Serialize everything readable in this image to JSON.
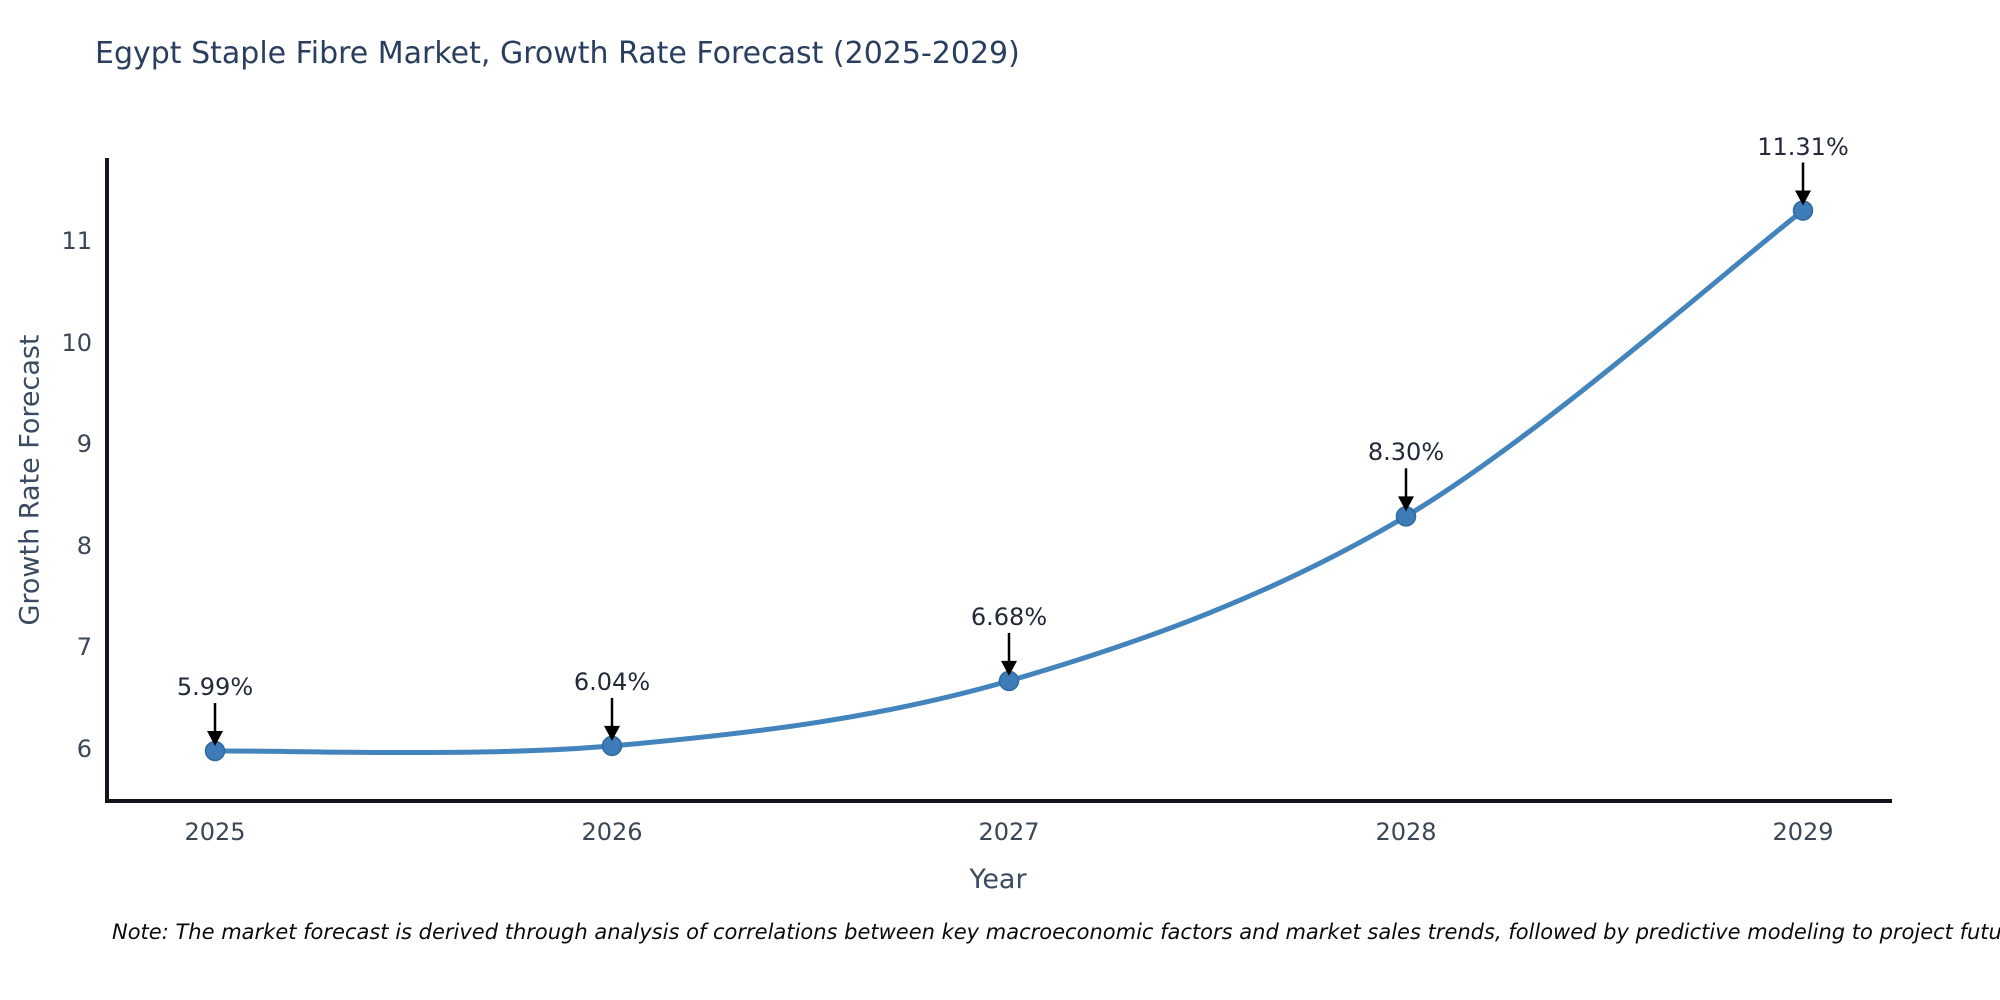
{
  "title": "Egypt Staple Fibre Market, Growth Rate Forecast (2025-2029)",
  "note": "Note: The market forecast is derived through analysis of correlations between key macroeconomic factors and market sales trends, followed by predictive modeling to project future sales",
  "chart_data": {
    "type": "line",
    "title": "Egypt Staple Fibre Market, Growth Rate Forecast (2025-2029)",
    "xlabel": "Year",
    "ylabel": "Growth Rate Forecast",
    "categories": [
      "2025",
      "2026",
      "2027",
      "2028",
      "2029"
    ],
    "series": [
      {
        "name": "Growth Rate Forecast",
        "values": [
          5.99,
          6.04,
          6.68,
          8.3,
          11.31
        ]
      }
    ],
    "point_labels": [
      "5.99%",
      "6.04%",
      "6.68%",
      "8.30%",
      "11.31%"
    ],
    "y_ticks": [
      6,
      7,
      8,
      9,
      10,
      11
    ],
    "ylim": [
      5.49,
      11.83
    ],
    "grid": false,
    "legend": "none",
    "line_smoothing": "spline",
    "colors": {
      "line": "#4384bc",
      "marker": "#3d7cb8",
      "marker_edge": "#32699f",
      "axis": "#11131d",
      "arrow": "#000000",
      "title_text": "#2a3f5f",
      "tick_text": "#3b4656",
      "annotation_text": "#222a38",
      "note_text": "#0a0a0a"
    }
  }
}
